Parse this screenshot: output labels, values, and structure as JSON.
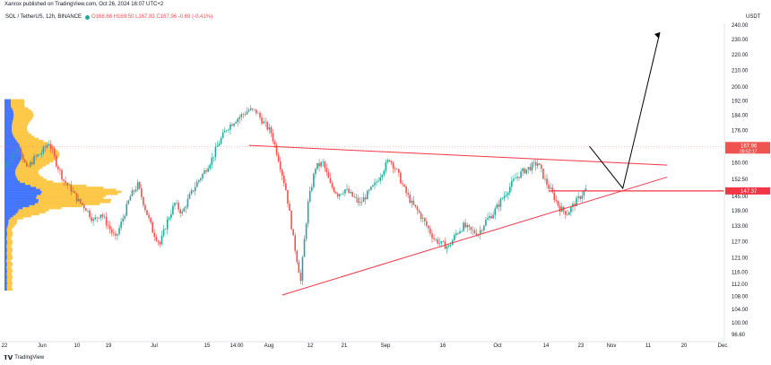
{
  "header": {
    "published": "Xanrox published on TradingView.com, Oct 26, 2024 16:07 UTC+2"
  },
  "legend": {
    "symbol": "SOL / TetherUS, 12h, BINANCE",
    "ohlc": "O168.66 H169.50 L167.83 C167.96 -0.69 (-0.41%)"
  },
  "price_unit": "USDT",
  "footer": {
    "brand": "TradingView"
  },
  "colors": {
    "up": "#26a69a",
    "down": "#ef5350",
    "trendline": "#f23645",
    "vp_blue": "#2962ff",
    "vp_orange": "#fbc02d"
  },
  "price_labels": {
    "last": {
      "value": 167.96,
      "text": "167.96",
      "sub": "09:52:17"
    },
    "level": {
      "value": 147.37,
      "text": "147.37"
    }
  },
  "chart_data": {
    "type": "candlestick",
    "title": "SOL / TetherUS, 12h, BINANCE",
    "y_axis": {
      "ticks": [
        96.6,
        100.0,
        104.0,
        108.0,
        112.0,
        116.0,
        121.0,
        127.0,
        133.0,
        139.0,
        145.0,
        152.5,
        160.0,
        168.0,
        176.0,
        184.0,
        192.0,
        200.0,
        210.0,
        220.0,
        230.0,
        240.0
      ],
      "scale": "log",
      "range": [
        96.6,
        240
      ]
    },
    "x_axis": {
      "ticks": [
        "22",
        "Jun",
        "10",
        "19",
        "Jul",
        "15",
        "14:00",
        "Aug",
        "12",
        "21",
        "Sep",
        "16",
        "Oct",
        "14",
        "23",
        "Nov",
        "11",
        "20",
        "Dec"
      ]
    },
    "price_path": [
      [
        0,
        158
      ],
      [
        2,
        163
      ],
      [
        4,
        168
      ],
      [
        6,
        157
      ],
      [
        8,
        162
      ],
      [
        10,
        165
      ],
      [
        12,
        170
      ],
      [
        14,
        160
      ],
      [
        16,
        152
      ],
      [
        18,
        148
      ],
      [
        20,
        143
      ],
      [
        22,
        140
      ],
      [
        24,
        135
      ],
      [
        26,
        138
      ],
      [
        28,
        133
      ],
      [
        30,
        128
      ],
      [
        32,
        136
      ],
      [
        34,
        145
      ],
      [
        36,
        150
      ],
      [
        38,
        140
      ],
      [
        40,
        131
      ],
      [
        42,
        126
      ],
      [
        44,
        135
      ],
      [
        46,
        142
      ],
      [
        48,
        138
      ],
      [
        50,
        145
      ],
      [
        52,
        151
      ],
      [
        54,
        156
      ],
      [
        56,
        162
      ],
      [
        58,
        170
      ],
      [
        60,
        177
      ],
      [
        62,
        181
      ],
      [
        64,
        184
      ],
      [
        66,
        187
      ],
      [
        68,
        186
      ],
      [
        70,
        180
      ],
      [
        72,
        175
      ],
      [
        74,
        162
      ],
      [
        76,
        148
      ],
      [
        78,
        128
      ],
      [
        80,
        113
      ],
      [
        82,
        142
      ],
      [
        84,
        158
      ],
      [
        86,
        160
      ],
      [
        88,
        150
      ],
      [
        90,
        146
      ],
      [
        92,
        148
      ],
      [
        94,
        145
      ],
      [
        96,
        142
      ],
      [
        98,
        146
      ],
      [
        100,
        150
      ],
      [
        102,
        156
      ],
      [
        104,
        162
      ],
      [
        106,
        156
      ],
      [
        108,
        148
      ],
      [
        110,
        142
      ],
      [
        112,
        138
      ],
      [
        114,
        133
      ],
      [
        116,
        128
      ],
      [
        118,
        126
      ],
      [
        120,
        125
      ],
      [
        122,
        130
      ],
      [
        124,
        133
      ],
      [
        126,
        131
      ],
      [
        128,
        130
      ],
      [
        130,
        135
      ],
      [
        132,
        138
      ],
      [
        134,
        143
      ],
      [
        136,
        148
      ],
      [
        138,
        153
      ],
      [
        140,
        156
      ],
      [
        142,
        158
      ],
      [
        144,
        160
      ],
      [
        146,
        152
      ],
      [
        148,
        146
      ],
      [
        150,
        140
      ],
      [
        152,
        138
      ],
      [
        154,
        142
      ],
      [
        156,
        146
      ],
      [
        158,
        150
      ],
      [
        160,
        154
      ],
      [
        162,
        158
      ],
      [
        164,
        162
      ],
      [
        166,
        168
      ],
      [
        168,
        174
      ],
      [
        170,
        180
      ],
      [
        172,
        172
      ],
      [
        174,
        168
      ]
    ],
    "annotations": {
      "triangle_upper": {
        "from": [
          "2024-07-27",
          168.5
        ],
        "to": [
          "2024-11-17",
          159.0
        ]
      },
      "triangle_lower": {
        "from": [
          "2024-08-05",
          108.5
        ],
        "to": [
          "2024-11-17",
          153.5
        ]
      },
      "horizontal_level": {
        "price": 147.37
      },
      "projection": [
        [
          "2024-10-27",
          168.0
        ],
        [
          "2024-11-05",
          148.5
        ],
        [
          "2024-11-15",
          235.0
        ]
      ]
    },
    "volume_profile": "left-side horizontal histogram (blue/orange)",
    "grid": false
  }
}
